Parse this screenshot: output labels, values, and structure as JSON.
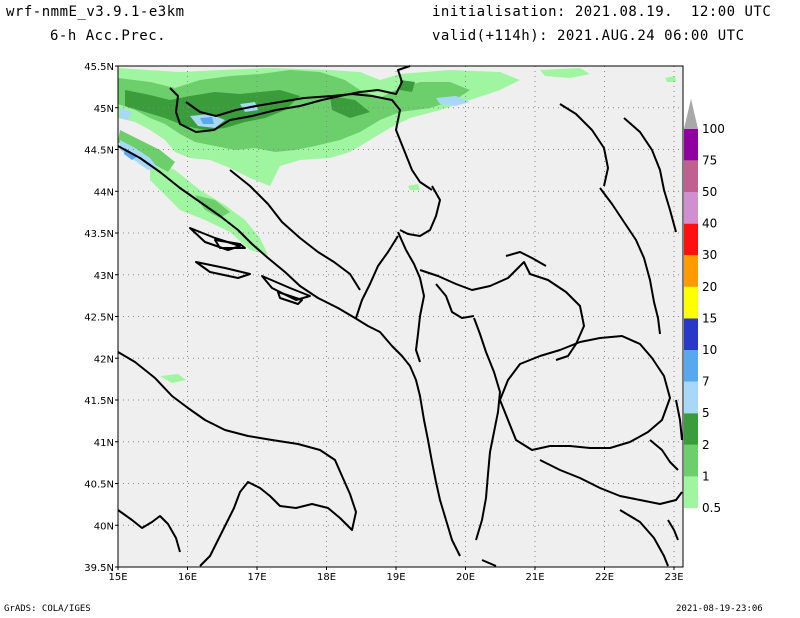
{
  "header": {
    "model": "wrf-nmmE_v3.9.1-e3km",
    "field": "6-h Acc.Prec.",
    "init": "initialisation: 2021.08.19.  12:00 UTC",
    "valid": "valid(+114h): 2021.AUG.24 06:00 UTC"
  },
  "footer": {
    "left": "GrADS: COLA/IGES",
    "right": "2021-08-19-23:06"
  },
  "map": {
    "lat_labels": [
      "45.5N",
      "45N",
      "44.5N",
      "44N",
      "43.5N",
      "43N",
      "42.5N",
      "42N",
      "41.5N",
      "41N",
      "40.5N",
      "40N",
      "39.5N"
    ],
    "lon_labels": [
      "15E",
      "16E",
      "17E",
      "18E",
      "19E",
      "20E",
      "21E",
      "22E",
      "23E"
    ],
    "background_color": "#efefef"
  },
  "colorbar": {
    "levels": [
      {
        "label": "0.5",
        "color": "#a0f5a0"
      },
      {
        "label": "1",
        "color": "#6ccf6c"
      },
      {
        "label": "2",
        "color": "#3a9c3a"
      },
      {
        "label": "5",
        "color": "#a8d8f8"
      },
      {
        "label": "7",
        "color": "#58a8f0"
      },
      {
        "label": "10",
        "color": "#2838c8"
      },
      {
        "label": "15",
        "color": "#ffff00"
      },
      {
        "label": "20",
        "color": "#ff9a00"
      },
      {
        "label": "30",
        "color": "#ff1010"
      },
      {
        "label": "40",
        "color": "#d090d0"
      },
      {
        "label": "50",
        "color": "#c06090"
      },
      {
        "label": "75",
        "color": "#9000a0"
      },
      {
        "label": "100",
        "color": "#a8a8a8"
      }
    ]
  }
}
